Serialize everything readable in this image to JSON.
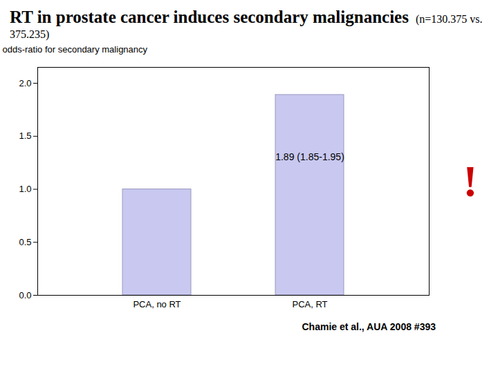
{
  "chart_data": {
    "type": "bar",
    "title": "RT in prostate cancer induces secondary malignancies",
    "subtitle": "(n=130.375 vs. 375.235)",
    "ylabel": "odds-ratio for secondary malignancy",
    "categories": [
      "PCA, no RT",
      "PCA, RT"
    ],
    "values": [
      1.0,
      1.89
    ],
    "color": "#c8c8f0",
    "ylim": [
      0,
      2.15
    ],
    "yticks": [
      {
        "value": 0,
        "label": "0.0"
      },
      0.5,
      {
        "value": 1,
        "label": "1.0"
      },
      1.5,
      {
        "value": 2,
        "label": "2.0"
      }
    ],
    "annotations": [
      {
        "text": "1.89 (1.85-1.95)",
        "x": "PCA, RT",
        "y": 1.3
      },
      {
        "text": "!",
        "color": "#cc0000"
      }
    ],
    "caption": "Chamie et al., AUA 2008 #393",
    "grid": false
  }
}
